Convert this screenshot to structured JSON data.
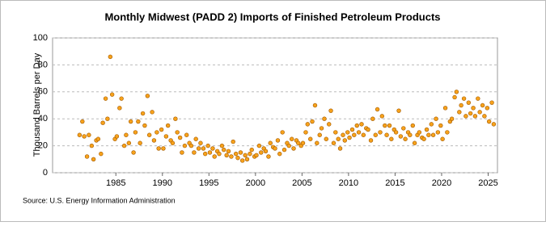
{
  "chart_data": {
    "type": "scatter",
    "title": "Monthly Midwest (PADD 2) Imports of Finished Petroleum Products",
    "y_label": "Thousand Barrels per Day",
    "source": "Source: U.S. Energy Information Administration",
    "color": "#f7a21b",
    "xlim": [
      1978.2,
      2026
    ],
    "ylim": [
      0,
      100
    ],
    "xticks": [
      1985,
      1990,
      1995,
      2000,
      2005,
      2010,
      2015,
      2020,
      2025
    ],
    "yticks": [
      0,
      20,
      40,
      60,
      80,
      100
    ],
    "grid": true,
    "x": [
      1981.1,
      1981.4,
      1981.6,
      1981.9,
      1982.1,
      1982.4,
      1982.6,
      1982.9,
      1983.1,
      1983.4,
      1983.6,
      1983.9,
      1984.1,
      1984.4,
      1984.6,
      1984.9,
      1985.1,
      1985.4,
      1985.6,
      1985.9,
      1986.1,
      1986.4,
      1986.6,
      1986.9,
      1987.1,
      1987.4,
      1987.6,
      1987.9,
      1988.1,
      1988.4,
      1988.6,
      1988.9,
      1989.1,
      1989.4,
      1989.6,
      1989.9,
      1990.1,
      1990.4,
      1990.6,
      1990.9,
      1991.1,
      1991.4,
      1991.6,
      1991.9,
      1992.1,
      1992.4,
      1992.6,
      1992.9,
      1993.1,
      1993.4,
      1993.6,
      1993.9,
      1994.1,
      1994.4,
      1994.6,
      1994.9,
      1995.1,
      1995.4,
      1995.6,
      1995.9,
      1996.1,
      1996.4,
      1996.6,
      1996.9,
      1997.1,
      1997.4,
      1997.6,
      1997.9,
      1998.1,
      1998.4,
      1998.6,
      1998.9,
      1999.1,
      1999.4,
      1999.6,
      1999.9,
      2000.1,
      2000.4,
      2000.6,
      2000.9,
      2001.1,
      2001.4,
      2001.6,
      2001.9,
      2002.1,
      2002.4,
      2002.6,
      2002.9,
      2003.1,
      2003.4,
      2003.6,
      2003.9,
      2004.1,
      2004.4,
      2004.6,
      2004.9,
      2005.1,
      2005.4,
      2005.6,
      2005.9,
      2006.1,
      2006.4,
      2006.6,
      2006.9,
      2007.1,
      2007.4,
      2007.6,
      2007.9,
      2008.1,
      2008.4,
      2008.6,
      2008.9,
      2009.1,
      2009.4,
      2009.6,
      2009.9,
      2010.1,
      2010.4,
      2010.6,
      2010.9,
      2011.1,
      2011.4,
      2011.6,
      2011.9,
      2012.1,
      2012.4,
      2012.6,
      2012.9,
      2013.1,
      2013.4,
      2013.6,
      2013.9,
      2014.1,
      2014.4,
      2014.6,
      2014.9,
      2015.1,
      2015.4,
      2015.6,
      2015.9,
      2016.1,
      2016.4,
      2016.6,
      2016.9,
      2017.1,
      2017.4,
      2017.6,
      2017.9,
      2018.1,
      2018.4,
      2018.6,
      2018.9,
      2019.1,
      2019.4,
      2019.6,
      2019.9,
      2020.1,
      2020.4,
      2020.6,
      2020.9,
      2021.1,
      2021.4,
      2021.6,
      2021.9,
      2022.1,
      2022.4,
      2022.6,
      2022.9,
      2023.1,
      2023.4,
      2023.6,
      2023.9,
      2024.1,
      2024.4,
      2024.6,
      2024.9,
      2025.1,
      2025.4,
      2025.6
    ],
    "values": [
      28,
      38,
      27,
      12,
      28,
      20,
      10,
      24,
      25,
      14,
      37,
      55,
      40,
      86,
      58,
      25,
      27,
      48,
      55,
      20,
      28,
      22,
      38,
      15,
      30,
      38,
      22,
      44,
      35,
      57,
      28,
      45,
      24,
      30,
      18,
      32,
      18,
      27,
      35,
      24,
      22,
      40,
      30,
      26,
      15,
      20,
      28,
      22,
      20,
      15,
      25,
      18,
      22,
      18,
      14,
      20,
      15,
      18,
      12,
      16,
      14,
      20,
      17,
      13,
      16,
      12,
      23,
      14,
      11,
      15,
      9,
      13,
      10,
      14,
      17,
      12,
      13,
      20,
      15,
      18,
      16,
      12,
      22,
      19,
      18,
      24,
      14,
      30,
      17,
      22,
      20,
      25,
      18,
      24,
      22,
      20,
      22,
      30,
      36,
      25,
      38,
      50,
      22,
      28,
      33,
      40,
      25,
      36,
      46,
      22,
      30,
      25,
      18,
      28,
      24,
      30,
      26,
      32,
      28,
      35,
      30,
      36,
      28,
      33,
      32,
      24,
      40,
      28,
      47,
      30,
      42,
      35,
      28,
      35,
      25,
      32,
      30,
      46,
      27,
      33,
      25,
      30,
      28,
      35,
      22,
      28,
      30,
      26,
      25,
      32,
      28,
      36,
      28,
      40,
      30,
      35,
      25,
      48,
      30,
      38,
      40,
      56,
      60,
      45,
      50,
      55,
      42,
      52,
      44,
      48,
      42,
      55,
      45,
      50,
      42,
      48,
      38,
      52,
      36
    ]
  }
}
